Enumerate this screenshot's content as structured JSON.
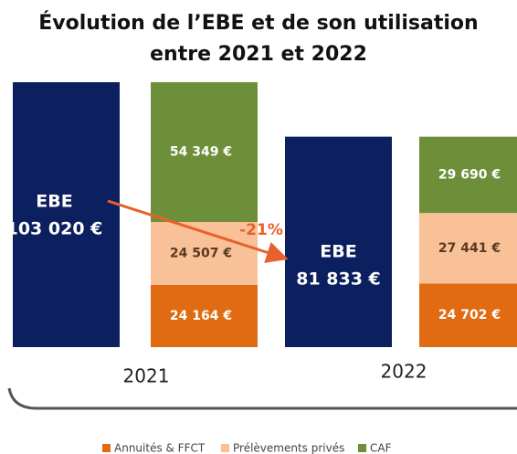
{
  "chart_data": {
    "type": "bar",
    "stacked": true,
    "title": [
      "Évolution de l’EBE et de son utilisation",
      "entre 2021 et 2022"
    ],
    "categories": [
      "2021",
      "2022"
    ],
    "ebe": {
      "name": "EBE",
      "color": "#0c1f5e",
      "values": [
        103020,
        81833
      ],
      "value_labels": [
        "103 020 €",
        "81 833 €"
      ]
    },
    "series": [
      {
        "name": "Annuités & FFCT",
        "color": "#e06b12",
        "values": [
          24164,
          24702
        ],
        "value_labels": [
          "24 164 €",
          "24 702 €"
        ]
      },
      {
        "name": "Prélèvements privés",
        "color": "#f9c198",
        "values": [
          24507,
          27441
        ],
        "value_labels": [
          "24 507 €",
          "27 441 €"
        ]
      },
      {
        "name": "CAF",
        "color": "#6e8f39",
        "values": [
          54349,
          29690
        ],
        "value_labels": [
          "54 349 €",
          "29 690 €"
        ]
      }
    ],
    "annotation": "-21%",
    "annotation_color": "#e8602c"
  }
}
